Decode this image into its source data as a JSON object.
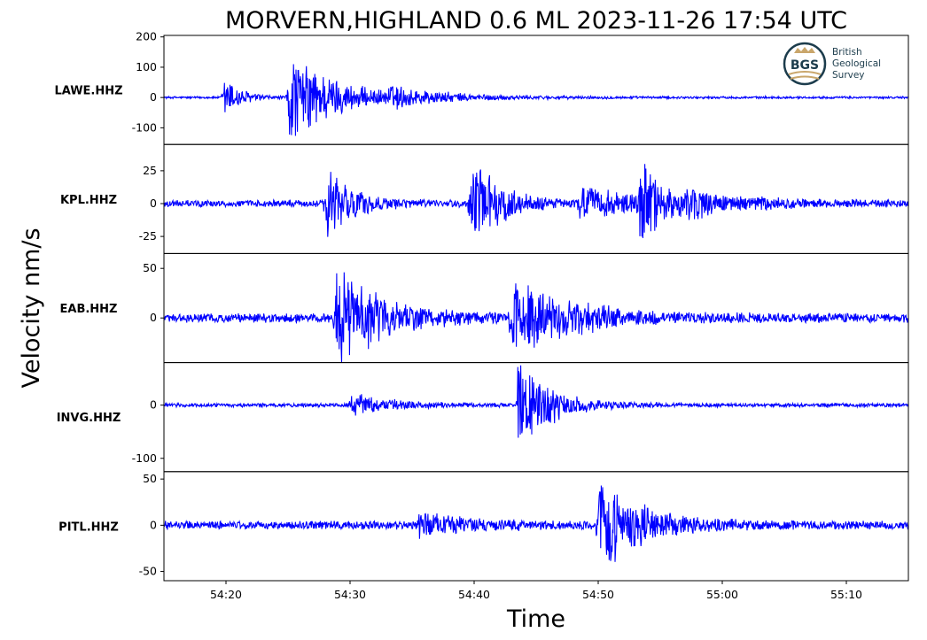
{
  "chart_data": {
    "type": "line",
    "title": "MORVERN,HIGHLAND 0.6 ML   2023-11-26 17:54 UTC",
    "xlabel": "Time",
    "ylabel": "Velocity nm/s",
    "x_tick_labels": [
      "54:20",
      "54:30",
      "54:40",
      "54:50",
      "55:00",
      "55:10"
    ],
    "x_tick_seconds": [
      20,
      30,
      40,
      50,
      60,
      70
    ],
    "x_range_seconds": [
      15,
      75
    ],
    "x_start": "2023-11-26 17:54:15",
    "series_color": "#0000ff",
    "grid": false,
    "panels": [
      {
        "station": "LAWE.HHZ",
        "ylim": [
          -155,
          205
        ],
        "y_ticks": [
          200,
          100,
          0,
          -100
        ],
        "y_tick_labels": [
          "200",
          "100",
          "0",
          "-100"
        ],
        "noise": 4,
        "events": [
          {
            "t": 19.8,
            "amp": 100,
            "decay": 1.2
          },
          {
            "t": 25.0,
            "amp": 185,
            "decay": 2.5
          },
          {
            "t": 26.5,
            "amp": 40,
            "decay": 6
          },
          {
            "t": 33.0,
            "amp": 30,
            "decay": 4
          }
        ]
      },
      {
        "station": "KPL.HHZ",
        "ylim": [
          -38,
          45
        ],
        "y_ticks": [
          25,
          0,
          -25
        ],
        "y_tick_labels": [
          "25",
          "0",
          "-25"
        ],
        "noise": 3,
        "events": [
          {
            "t": 28.0,
            "amp": 38,
            "decay": 1.8
          },
          {
            "t": 39.7,
            "amp": 40,
            "decay": 2.2
          },
          {
            "t": 48.5,
            "amp": 14,
            "decay": 4
          },
          {
            "t": 53.3,
            "amp": 36,
            "decay": 1.8
          },
          {
            "t": 57.0,
            "amp": 8,
            "decay": 5
          }
        ]
      },
      {
        "station": "EAB.HHZ",
        "ylim": [
          -45,
          65
        ],
        "y_ticks": [
          50,
          0
        ],
        "y_tick_labels": [
          "50",
          "0"
        ],
        "noise": 5,
        "events": [
          {
            "t": 28.8,
            "amp": 58,
            "decay": 3.5
          },
          {
            "t": 43.0,
            "amp": 45,
            "decay": 4.5
          }
        ]
      },
      {
        "station": "INVG.HHZ",
        "ylim": [
          -125,
          80
        ],
        "y_ticks": [
          0,
          -100
        ],
        "y_tick_labels": [
          "0",
          "-100"
        ],
        "noise": 4,
        "events": [
          {
            "t": 30.0,
            "amp": 25,
            "decay": 3
          },
          {
            "t": 43.5,
            "amp": 100,
            "decay": 2.5
          }
        ]
      },
      {
        "station": "PITL.HHZ",
        "ylim": [
          -60,
          58
        ],
        "y_ticks": [
          50,
          0,
          -50
        ],
        "y_tick_labels": [
          "50",
          "0",
          "-50"
        ],
        "noise": 5,
        "events": [
          {
            "t": 35.5,
            "amp": 14,
            "decay": 4
          },
          {
            "t": 50.0,
            "amp": 52,
            "decay": 3.5
          }
        ]
      }
    ]
  },
  "logo": {
    "abbr": "BGS",
    "lines": [
      "British",
      "Geological",
      "Survey"
    ]
  }
}
